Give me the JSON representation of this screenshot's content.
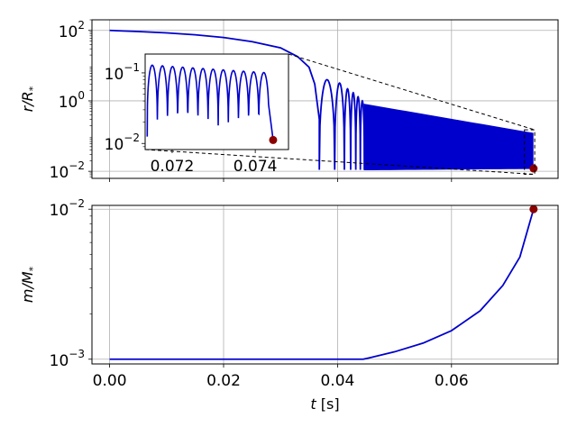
{
  "chart_data": [
    {
      "id": "top",
      "type": "line",
      "ylabel": "r/R",
      "ylabel_sub": "*",
      "yscale": "log",
      "xlim": [
        -0.0031,
        0.0787
      ],
      "ylim": [
        0.0063,
        200
      ],
      "xticks": [
        0.0,
        0.02,
        0.04,
        0.06
      ],
      "xtick_labels_shown": false,
      "yticks": [
        {
          "value": 100,
          "base": "10",
          "exp": "2"
        },
        {
          "value": 1,
          "base": "10",
          "exp": "0"
        },
        {
          "value": 0.01,
          "base": "10",
          "exp": "−2"
        }
      ],
      "grid": true,
      "line_color": "#0000cc",
      "marker_color": "#8b0000",
      "series": [
        {
          "envelope_t": [
            0.0,
            0.005,
            0.01,
            0.015,
            0.02,
            0.025,
            0.03,
            0.033,
            0.035,
            0.036,
            0.0368
          ],
          "envelope_r": [
            100,
            93,
            85,
            75,
            63,
            48,
            32,
            18,
            9,
            3,
            0.3
          ],
          "bounces": [
            {
              "t0": 0.0368,
              "t1": 0.0395,
              "min": 0.011,
              "max": 4.0
            },
            {
              "t0": 0.0395,
              "t1": 0.0412,
              "min": 0.011,
              "max": 3.2
            },
            {
              "t0": 0.0412,
              "t1": 0.0423,
              "min": 0.011,
              "max": 2.2
            },
            {
              "t0": 0.0423,
              "t1": 0.0432,
              "min": 0.011,
              "max": 1.7
            },
            {
              "t0": 0.0432,
              "t1": 0.044,
              "min": 0.011,
              "max": 1.3
            },
            {
              "t0": 0.044,
              "t1": 0.0447,
              "min": 0.011,
              "max": 1.0
            }
          ],
          "band": {
            "t_start": 0.0447,
            "t_end": 0.0743,
            "upper_start": 0.8,
            "upper_end": 0.12,
            "lower_start": 0.011,
            "lower_end": 0.012
          },
          "endpoint": {
            "t": 0.0744,
            "r": 0.012
          }
        }
      ],
      "inset": {
        "xlim": [
          0.07135,
          0.0748
        ],
        "ylim": [
          0.0082,
          0.185
        ],
        "xticks": [
          0.072,
          0.074
        ],
        "xtick_labels": [
          "0.072",
          "0.074"
        ],
        "yticks": [
          {
            "value": 0.1,
            "base": "10",
            "exp": "−1"
          },
          {
            "value": 0.01,
            "base": "10",
            "exp": "−2"
          }
        ],
        "oscillation": {
          "t_start": 0.0714,
          "period": 0.000244,
          "max_start": 0.13,
          "max_end": 0.1,
          "min": 0.0125,
          "end_t": 0.07432
        },
        "endpoint": {
          "t": 0.07443,
          "r": 0.0112
        },
        "zoom_box": {
          "x": [
            0.0728,
            0.0746
          ],
          "y": [
            0.0082,
            0.15
          ]
        }
      }
    },
    {
      "id": "bottom",
      "type": "line",
      "ylabel": "m/M",
      "ylabel_sub": "*",
      "xlabel": "t",
      "xlabel_unit": " [s]",
      "yscale": "log",
      "xlim": [
        -0.0031,
        0.0787
      ],
      "ylim": [
        0.00093,
        0.0106
      ],
      "xticks": [
        0.0,
        0.02,
        0.04,
        0.06
      ],
      "xtick_labels": [
        "0.00",
        "0.02",
        "0.04",
        "0.06"
      ],
      "yticks": [
        {
          "value": 0.01,
          "base": "10",
          "exp": "−2"
        },
        {
          "value": 0.001,
          "base": "10",
          "exp": "−3"
        }
      ],
      "grid": true,
      "line_color": "#0000cc",
      "marker_color": "#8b0000",
      "series": [
        {
          "t": [
            0.0,
            0.02,
            0.04,
            0.0445,
            0.0455,
            0.05,
            0.055,
            0.06,
            0.065,
            0.069,
            0.072,
            0.0744
          ],
          "m": [
            0.001,
            0.001,
            0.001,
            0.001,
            0.00102,
            0.00112,
            0.00128,
            0.00155,
            0.0021,
            0.0031,
            0.0048,
            0.01
          ]
        }
      ],
      "endpoint": {
        "t": 0.0744,
        "m": 0.01
      }
    }
  ]
}
